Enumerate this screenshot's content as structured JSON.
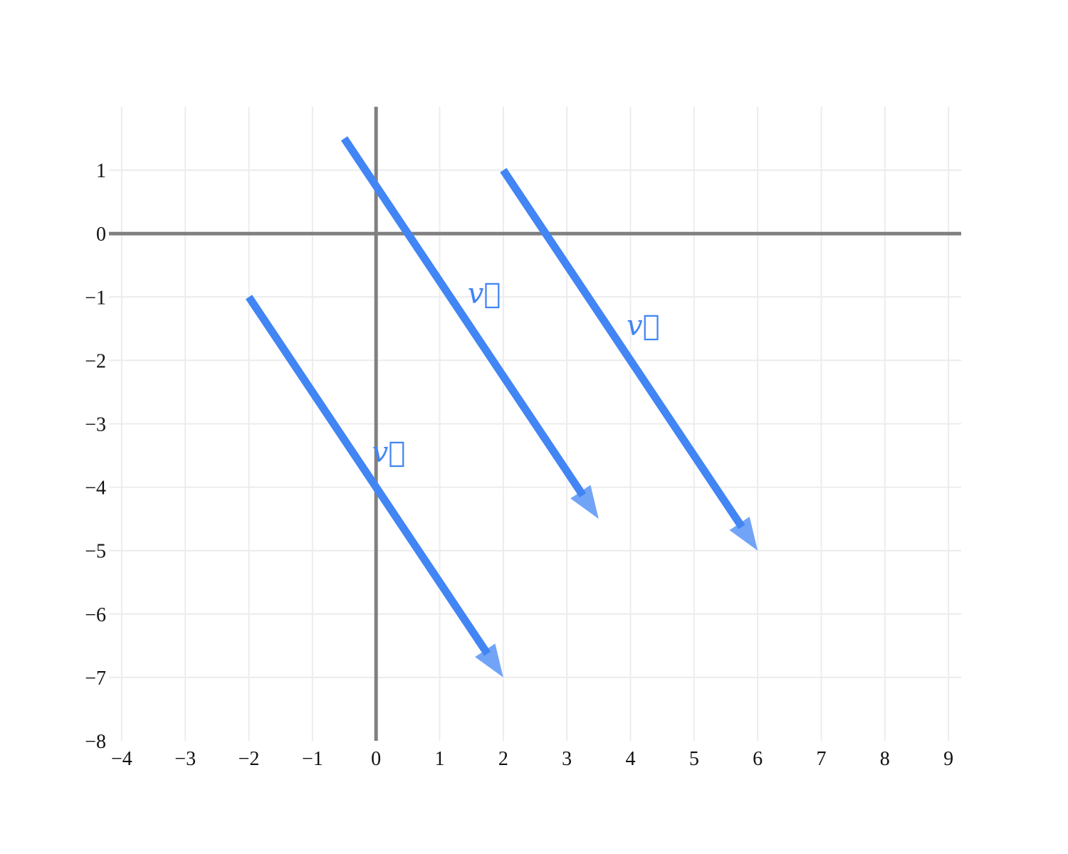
{
  "chart_data": {
    "type": "vector-field",
    "title": "",
    "xlabel": "",
    "ylabel": "",
    "xlim": [
      -4.2,
      9.2
    ],
    "ylim": [
      -8,
      2
    ],
    "grid": true,
    "x_ticks": [
      -4,
      -3,
      -2,
      -1,
      0,
      1,
      2,
      3,
      4,
      5,
      6,
      7,
      8,
      9
    ],
    "y_ticks": [
      1,
      0,
      -1,
      -2,
      -3,
      -4,
      -5,
      -6,
      -7,
      -8
    ],
    "x_tick_labels": [
      "−4",
      "−3",
      "−2",
      "−1",
      "0",
      "1",
      "2",
      "3",
      "4",
      "5",
      "6",
      "7",
      "8",
      "9"
    ],
    "y_tick_labels": [
      "1",
      "0",
      "−1",
      "−2",
      "−3",
      "−4",
      "−5",
      "−6",
      "−7",
      "−8"
    ],
    "vector_color": "#4285f4",
    "vectors": [
      {
        "tail": [
          -2,
          -1
        ],
        "head": [
          2,
          -7
        ],
        "label": "v⃗",
        "label_pos": [
          0.2,
          -3.6
        ]
      },
      {
        "tail": [
          -0.5,
          1.5
        ],
        "head": [
          3.5,
          -4.5
        ],
        "label": "v⃗",
        "label_pos": [
          1.7,
          -1.1
        ]
      },
      {
        "tail": [
          2,
          1
        ],
        "head": [
          6,
          -5
        ],
        "label": "v⃗",
        "label_pos": [
          4.2,
          -1.6
        ]
      }
    ]
  }
}
